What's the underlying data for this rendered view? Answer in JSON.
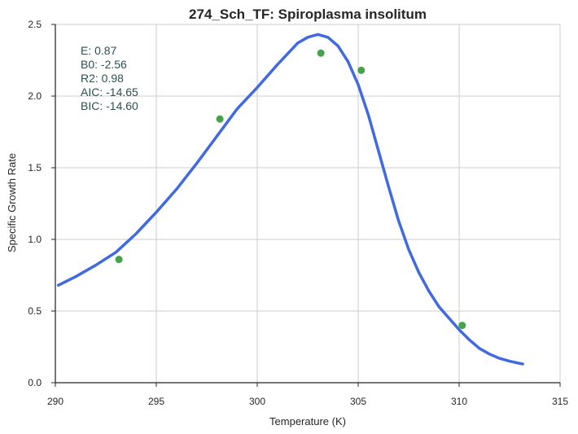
{
  "chart_data": {
    "type": "line",
    "title": "274_Sch_TF: Spiroplasma insolitum",
    "xlabel": "Temperature (K)",
    "ylabel": "Specific Growth Rate",
    "xlim": [
      290,
      315
    ],
    "ylim": [
      0,
      2.5
    ],
    "xticks": [
      290,
      295,
      300,
      305,
      310,
      315
    ],
    "yticks": [
      0.0,
      0.5,
      1.0,
      1.5,
      2.0,
      2.5
    ],
    "xtick_labels": [
      "290",
      "295",
      "300",
      "305",
      "310",
      "315"
    ],
    "ytick_labels": [
      "0.0",
      "0.5",
      "1.0",
      "1.5",
      "2.0",
      "2.5"
    ],
    "grid": true,
    "annotation": [
      "E:  0.87",
      "B0:  -2.56",
      "R2:  0.98",
      "AIC: -14.65",
      "BIC: -14.60"
    ],
    "series": [
      {
        "kind": "line",
        "color": "#4169e1",
        "x": [
          290.15,
          291,
          292,
          293,
          294,
          295,
          296,
          297,
          298,
          299,
          300,
          301,
          302,
          302.5,
          303,
          303.5,
          304,
          304.5,
          305,
          305.5,
          306,
          306.5,
          307,
          307.5,
          308,
          308.5,
          309,
          309.5,
          310,
          310.5,
          311,
          311.5,
          312,
          312.5,
          313.15
        ],
        "y": [
          0.68,
          0.74,
          0.82,
          0.91,
          1.04,
          1.19,
          1.35,
          1.53,
          1.72,
          1.91,
          2.06,
          2.22,
          2.37,
          2.41,
          2.43,
          2.41,
          2.35,
          2.24,
          2.08,
          1.87,
          1.62,
          1.37,
          1.13,
          0.93,
          0.77,
          0.64,
          0.53,
          0.45,
          0.37,
          0.3,
          0.24,
          0.2,
          0.17,
          0.15,
          0.13
        ]
      },
      {
        "kind": "scatter",
        "color": "#44a34a",
        "x": [
          293.15,
          298.15,
          303.15,
          305.15,
          310.15
        ],
        "y": [
          0.86,
          1.84,
          2.3,
          2.18,
          0.4
        ]
      }
    ]
  }
}
